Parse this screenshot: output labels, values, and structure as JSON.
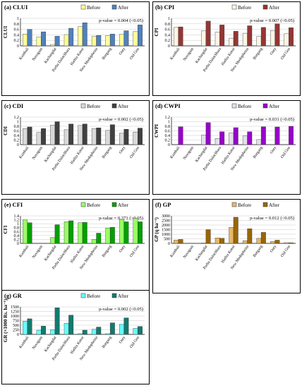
{
  "legend_before": "Before",
  "legend_after": "After",
  "chart_data": [
    {
      "type": "bar",
      "title": "(a) CLUI",
      "ylabel": "CLUI",
      "ylim": [
        0,
        1
      ],
      "yticks": [
        "0",
        "0.2",
        "0.4",
        "0.6",
        "0.8",
        "1"
      ],
      "categories": [
        "Kumbali",
        "Navagam",
        "Kachargdat",
        "Purba Dalochhara",
        "Hathia Kotor",
        "New Modopheina",
        "Borgang",
        "Ooty",
        "Old Goa"
      ],
      "series": [
        {
          "name": "Before",
          "values": [
            0.43,
            0.33,
            0.05,
            0.41,
            0.7,
            0.34,
            0.37,
            0.42,
            0.52
          ]
        },
        {
          "name": "After",
          "values": [
            0.6,
            0.51,
            0.35,
            0.64,
            0.84,
            0.38,
            0.43,
            0.55,
            0.76
          ]
        }
      ],
      "annotation": "p-value = 0.004 (<0.05)",
      "colors": [
        "#ffff99",
        "#4f81bd"
      ],
      "grid": true,
      "legend_position": "top-right"
    },
    {
      "type": "bar",
      "title": "(b) CPI",
      "ylabel": "CPI",
      "ylim": [
        0,
        1
      ],
      "yticks": [
        "0",
        "0.2",
        "0.4",
        "0.6",
        "0.8",
        "1"
      ],
      "categories": [
        "Kumbali",
        "Navagam",
        "Kachargdat",
        "Purba Dalochhara",
        "Hathia Kotor",
        "New Modopheina",
        "Borgang",
        "Ooty",
        "Old Goa"
      ],
      "series": [
        {
          "name": "Before",
          "values": [
            0.67,
            0,
            0.55,
            0.5,
            0.28,
            0.46,
            0.34,
            0.56,
            0.44
          ]
        },
        {
          "name": "After",
          "values": [
            0.69,
            0,
            0.9,
            0.76,
            0.53,
            0.73,
            0.67,
            0.8,
            0.66
          ]
        }
      ],
      "annotation": "p-value = 0.007 (<0.05)",
      "colors": [
        "#fdf5e6",
        "#943634"
      ],
      "grid": true,
      "legend_position": "top-right"
    },
    {
      "type": "bar",
      "title": "(c) CDI",
      "ylabel": "CDI",
      "ylim": [
        0,
        1.2
      ],
      "yticks": [
        "0",
        "0.2",
        "0.4",
        "0.6",
        "0.8",
        "1",
        "1.2"
      ],
      "categories": [
        "Kumbali",
        "Navagam",
        "Kachargdat",
        "Purba Dalochhara",
        "Hathia Kotor",
        "New Modopheina",
        "Borgang",
        "Ooty",
        "Old Goa"
      ],
      "series": [
        {
          "name": "Before",
          "values": [
            0.7,
            0.53,
            0.85,
            0.65,
            0.84,
            0.7,
            0.62,
            0.5,
            0.55
          ]
        },
        {
          "name": "After",
          "values": [
            0.77,
            0.7,
            1.0,
            0.9,
            0.9,
            0.73,
            0.87,
            0.67,
            0.72
          ]
        }
      ],
      "annotation": "p-value = 0.002 (<0.05)",
      "colors": [
        "#d9d9d9",
        "#404040"
      ],
      "grid": true,
      "legend_position": "top-right"
    },
    {
      "type": "bar",
      "title": "(d) CWPI",
      "ylabel": "CWPI",
      "ylim": [
        0,
        1.2
      ],
      "yticks": [
        "0",
        "0.2",
        "0.4",
        "0.6",
        "0.8",
        "1",
        "1.2"
      ],
      "categories": [
        "Kumbali",
        "Navagam",
        "Kachargdat",
        "Purba Dalochhara",
        "Hathia Kotor",
        "New Modopheina",
        "Borgang",
        "Ooty",
        "Old Goa"
      ],
      "series": [
        {
          "name": "Before",
          "values": [
            0,
            0,
            0.42,
            0.27,
            0.52,
            0.38,
            0.22,
            0,
            0
          ]
        },
        {
          "name": "After",
          "values": [
            0.78,
            0,
            0.96,
            0.56,
            0.74,
            0.56,
            0.78,
            0.77,
            0.8
          ]
        }
      ],
      "annotation": "p-value = 0.031 (<0.05)",
      "colors": [
        "#e4dfec",
        "#9900cc"
      ],
      "grid": true,
      "legend_position": "top-right"
    },
    {
      "type": "bar",
      "title": "(e) CFI",
      "ylabel": "CFI",
      "ylim": [
        0,
        1.4
      ],
      "yticks": [
        "0",
        "0.2",
        "0.4",
        "0.6",
        "0.8",
        "1",
        "1.2",
        "1.4"
      ],
      "categories": [
        "Kumbali",
        "Navagam",
        "Kachargdat",
        "Purba Dalochhara",
        "Hathia Kotor",
        "New Modopheina",
        "Borgang",
        "Ooty",
        "Old Goa"
      ],
      "series": [
        {
          "name": "Before",
          "values": [
            1.2,
            0,
            0.3,
            1.1,
            1.05,
            0.2,
            0.78,
            1.22,
            1.27
          ]
        },
        {
          "name": "After",
          "values": [
            1.05,
            0,
            0.95,
            1.15,
            1.07,
            0.52,
            0.82,
            1.1,
            1.1
          ]
        }
      ],
      "annotation": "p-value = 0.371 (>0.05)",
      "colors": [
        "#99ff66",
        "#00a000"
      ],
      "grid": true,
      "legend_position": "top-right"
    },
    {
      "type": "bar",
      "title": "(f) GP",
      "ylabel": "GP (q ha⁻¹)",
      "ylim": [
        0,
        3000
      ],
      "yticks": [
        "0",
        "500",
        "1000",
        "1500",
        "2000",
        "2500",
        "3000"
      ],
      "categories": [
        "Kumbali",
        "Navagam",
        "Kachargdat",
        "Purba Dalochhara",
        "Hathia Kotor",
        "New Modopheina",
        "Borgang",
        "Ooty",
        "Old Goa"
      ],
      "series": [
        {
          "name": "Before",
          "values": [
            350,
            0,
            30,
            600,
            1750,
            300,
            550,
            200,
            80
          ]
        },
        {
          "name": "After",
          "values": [
            430,
            0,
            1500,
            560,
            2850,
            1600,
            1200,
            350,
            70
          ]
        }
      ],
      "annotation": "p-value = 0.012 (<0.05)",
      "colors": [
        "#e6b86a",
        "#996600"
      ],
      "grid": true,
      "legend_position": "top-right"
    },
    {
      "type": "bar",
      "title": "(g) GR",
      "ylabel": "GR (×1000 Rs. ha⁻¹)",
      "ylim": [
        0,
        1500
      ],
      "yticks": [
        "0",
        "250",
        "500",
        "750",
        "1000",
        "1250",
        "1500"
      ],
      "categories": [
        "Kumbali",
        "Navagam",
        "Kachargdat",
        "Purba Dalochhara",
        "Hathia Kotor",
        "New Modopheina",
        "Borgang",
        "Ooty",
        "Old Goa"
      ],
      "series": [
        {
          "name": "Before",
          "values": [
            720,
            230,
            260,
            600,
            40,
            280,
            40,
            550,
            330
          ]
        },
        {
          "name": "After",
          "values": [
            850,
            450,
            1450,
            1050,
            230,
            400,
            630,
            900,
            430
          ]
        }
      ],
      "annotation": "p-value = 0.002 (<0.05)",
      "colors": [
        "#66ffff",
        "#127a6e"
      ],
      "grid": true,
      "legend_position": "top-right"
    }
  ]
}
